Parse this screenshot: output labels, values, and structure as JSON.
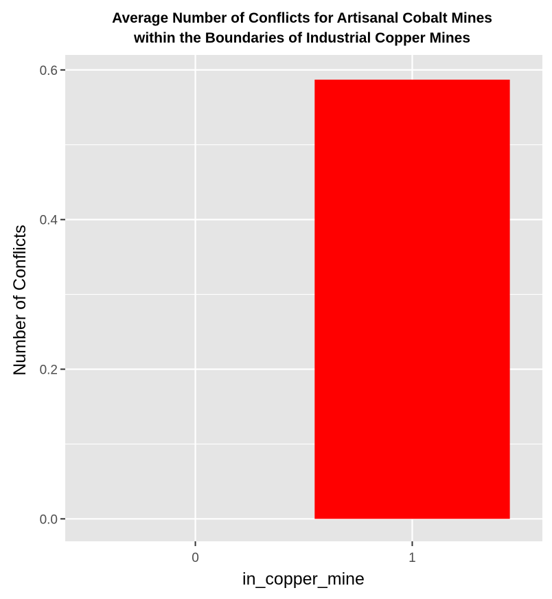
{
  "chart_data": {
    "type": "bar",
    "title_lines": [
      "Average Number of Conflicts for Artisanal Cobalt Mines",
      "within the Boundaries of Industrial Copper Mines"
    ],
    "xlabel": "in_copper_mine",
    "ylabel": "Number of Conflicts",
    "categories": [
      "0",
      "1"
    ],
    "values": [
      0,
      0.587
    ],
    "ylim": [
      -0.03,
      0.62
    ],
    "yticks": [
      0.0,
      0.2,
      0.4,
      0.6
    ],
    "ytick_labels": [
      "0.0",
      "0.2",
      "0.4",
      "0.6"
    ],
    "grid": true,
    "legend": "none",
    "colors": {
      "bar": "#ff0000",
      "panel": "#e5e5e5",
      "grid": "#ffffff"
    }
  }
}
